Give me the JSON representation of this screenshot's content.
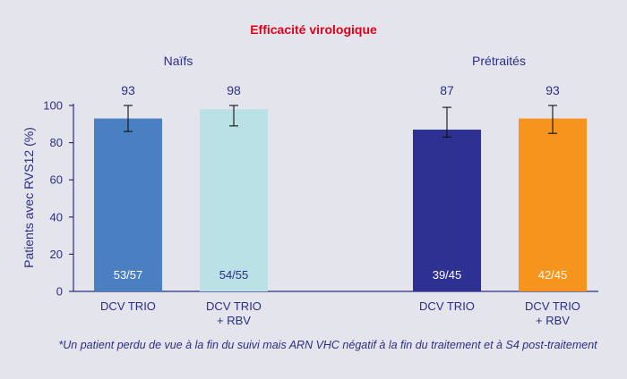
{
  "chart_data": {
    "type": "bar",
    "title": "Efficacité virologique",
    "ylabel": "Patients avec RVS12 (%)",
    "xlabel": "",
    "ylim": [
      0,
      100
    ],
    "yticks": [
      "0",
      "20",
      "40",
      "60",
      "80",
      "100"
    ],
    "grid": false,
    "groups": [
      "Naïfs",
      "Prétraités"
    ],
    "categories": [
      [
        "DCV TRIO"
      ],
      [
        "DCV TRIO",
        "+ RBV"
      ],
      [
        "DCV TRIO"
      ],
      [
        "DCV TRIO",
        "+ RBV"
      ]
    ],
    "values": [
      93,
      98,
      87,
      93
    ],
    "value_labels": [
      "93",
      "98",
      "87",
      "93"
    ],
    "error_bars": [
      [
        86,
        100
      ],
      [
        89,
        100
      ],
      [
        83,
        99
      ],
      [
        85,
        100
      ]
    ],
    "bar_labels": [
      "53/57",
      "54/55",
      "39/45",
      "42/45"
    ],
    "colors": [
      "#4a7fc1",
      "#b9e1e6",
      "#2e3192",
      "#f7941d"
    ],
    "footnote": "*Un patient perdu de vue à la fin du suivi mais ARN VHC négatif à la fin du traitement et à S4 post-traitement"
  }
}
